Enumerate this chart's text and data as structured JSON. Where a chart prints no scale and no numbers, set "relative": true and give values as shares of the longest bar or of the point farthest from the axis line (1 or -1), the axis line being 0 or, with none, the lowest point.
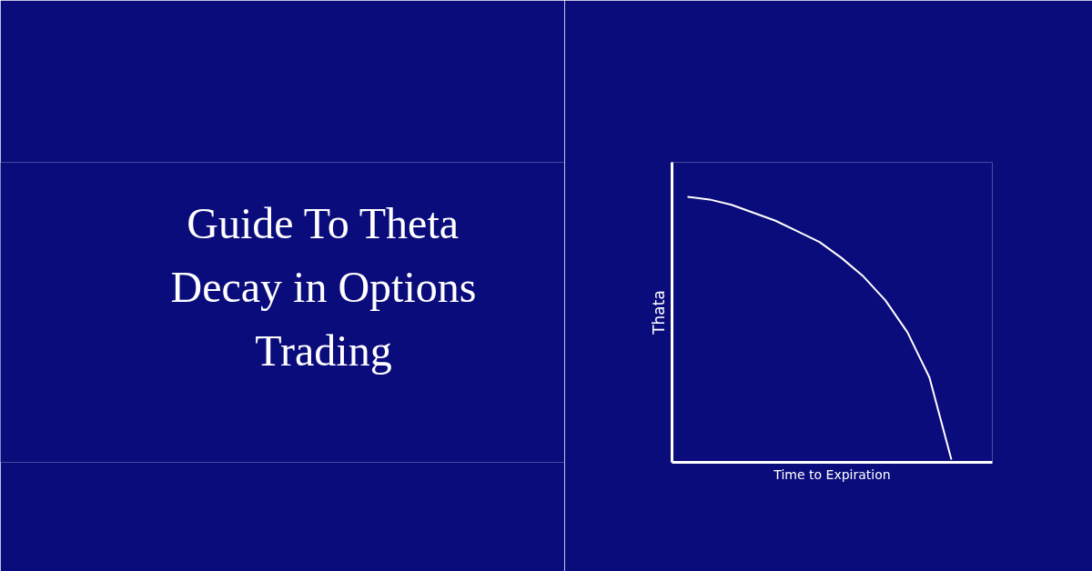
{
  "chart_data": {
    "type": "line",
    "title": "Guide To Theta Decay in Options Trading",
    "xlabel": "Time to Expiration",
    "ylabel": "Thata",
    "relative": true,
    "categories": [
      null,
      null,
      null,
      null,
      null,
      null,
      null,
      null,
      null,
      null,
      null,
      null,
      null
    ],
    "series": [
      {
        "color": "#ffffff",
        "values": [
          1.0,
          0.99,
          0.97,
          0.94,
          0.91,
          0.87,
          0.83,
          0.77,
          0.7,
          0.61,
          0.49,
          0.32,
          0.01
        ]
      }
    ],
    "marker": "none",
    "line_style": "solid"
  }
}
